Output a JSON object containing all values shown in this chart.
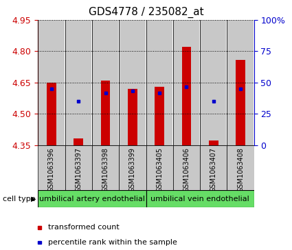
{
  "title": "GDS4778 / 235082_at",
  "samples": [
    "GSM1063396",
    "GSM1063397",
    "GSM1063398",
    "GSM1063399",
    "GSM1063405",
    "GSM1063406",
    "GSM1063407",
    "GSM1063408"
  ],
  "red_values": [
    4.65,
    4.38,
    4.66,
    4.62,
    4.63,
    4.82,
    4.37,
    4.76
  ],
  "blue_values": [
    4.62,
    4.56,
    4.6,
    4.61,
    4.6,
    4.63,
    4.56,
    4.62
  ],
  "red_base": 4.35,
  "ylim_left": [
    4.35,
    4.95
  ],
  "yticks_left": [
    4.35,
    4.5,
    4.65,
    4.8,
    4.95
  ],
  "yticks_right": [
    0,
    25,
    50,
    75,
    100
  ],
  "ytick_labels_right": [
    "0",
    "25",
    "50",
    "75",
    "100%"
  ],
  "cell_type_groups": [
    {
      "label": "umbilical artery endothelial",
      "indices": [
        0,
        1,
        2,
        3
      ]
    },
    {
      "label": "umbilical vein endothelial",
      "indices": [
        4,
        5,
        6,
        7
      ]
    }
  ],
  "cell_type_band_color": "#66DD66",
  "cell_type_label": "cell type",
  "legend_items": [
    {
      "color": "#CC0000",
      "label": "transformed count"
    },
    {
      "color": "#0000CC",
      "label": "percentile rank within the sample"
    }
  ],
  "bar_color": "#CC0000",
  "dot_color": "#0000CC",
  "bar_width": 0.35,
  "bar_bg_color": "#C8C8C8",
  "left_tick_color": "#CC0000",
  "right_tick_color": "#0000CC",
  "title_fontsize": 11,
  "tick_fontsize": 9,
  "sample_fontsize": 7,
  "legend_fontsize": 8
}
